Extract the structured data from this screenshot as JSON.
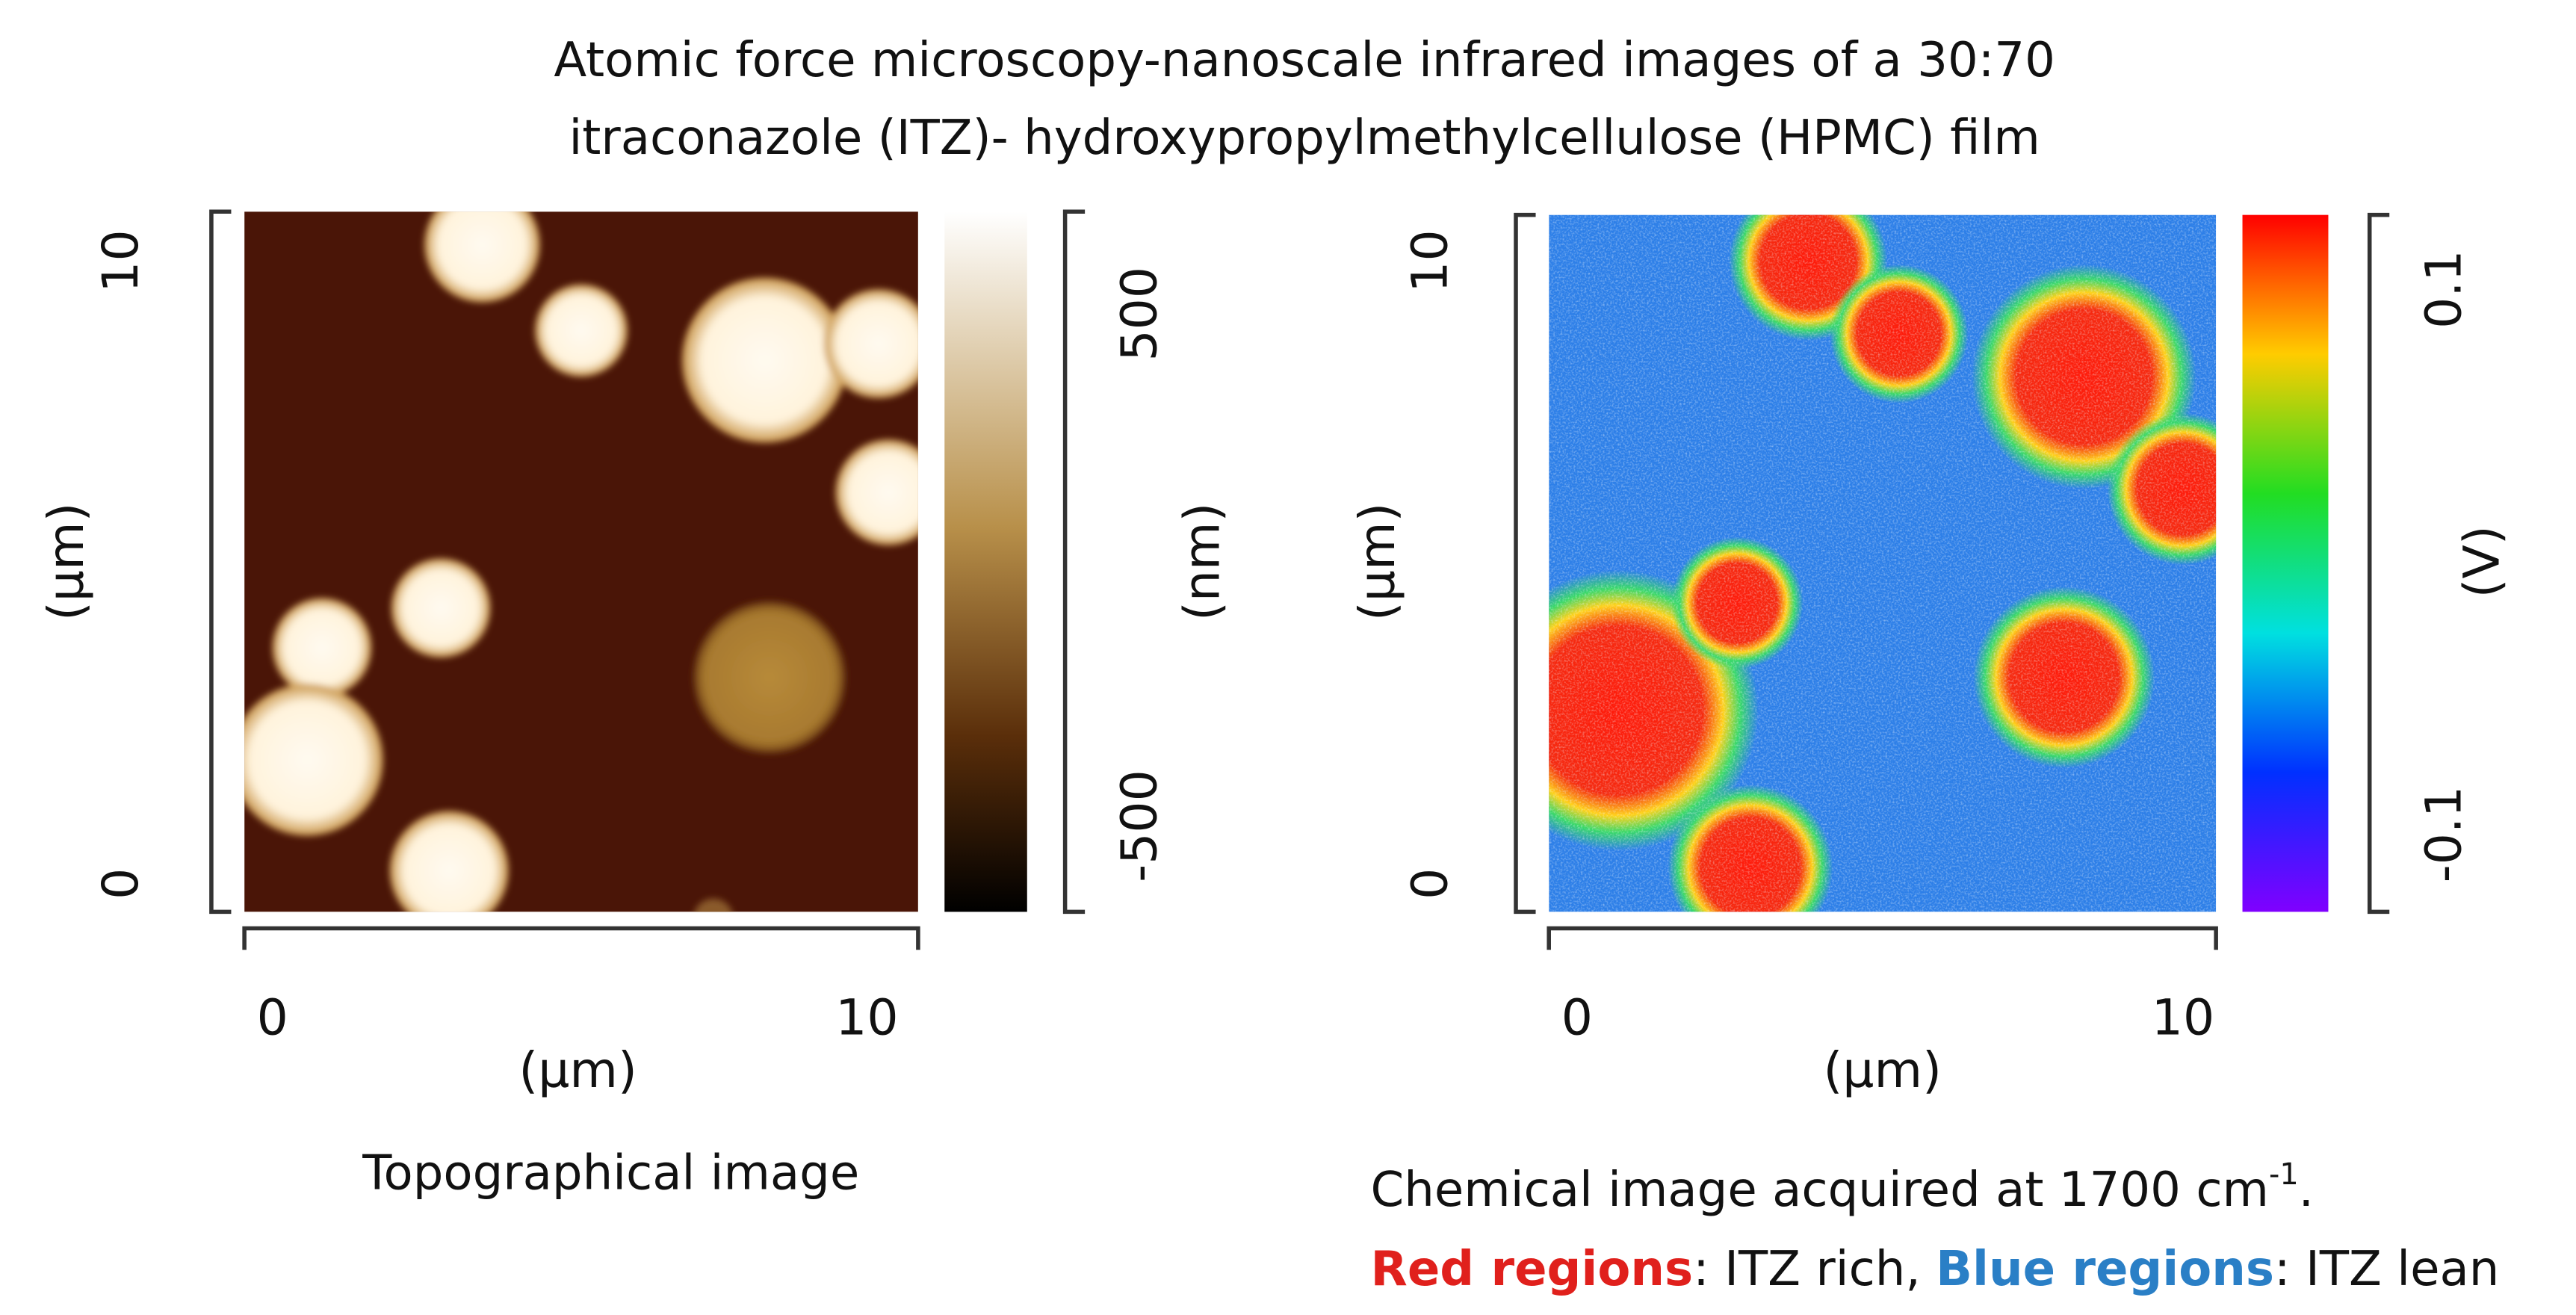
{
  "title": {
    "line1": "Atomic force microscopy-nanoscale infrared images of a 30:70",
    "line2": "itraconazole (ITZ)- hydroxypropylmethylcellulose (HPMC) film"
  },
  "panels": [
    {
      "y_ticks": [
        "10",
        "0"
      ],
      "y_label": "(µm)",
      "x_ticks": [
        "0",
        "10"
      ],
      "x_label": "(µm)",
      "colorbar_ticks": [
        "500",
        "-500"
      ],
      "colorbar_label": "(nm)",
      "caption": "Topographical image"
    },
    {
      "y_ticks": [
        "10",
        "0"
      ],
      "y_label": "(µm)",
      "x_ticks": [
        "0",
        "10"
      ],
      "x_label": "(µm)",
      "colorbar_ticks": [
        "0.1",
        "-0.1"
      ],
      "colorbar_label": "(V)",
      "caption": {
        "text": "Chemical image acquired at 1700 cm",
        "superscript": "-1",
        "end": "."
      },
      "legend": [
        {
          "term": "Red regions",
          "description": ": ITZ rich, "
        },
        {
          "term": "Blue regions",
          "description": ": ITZ lean"
        }
      ]
    }
  ]
}
